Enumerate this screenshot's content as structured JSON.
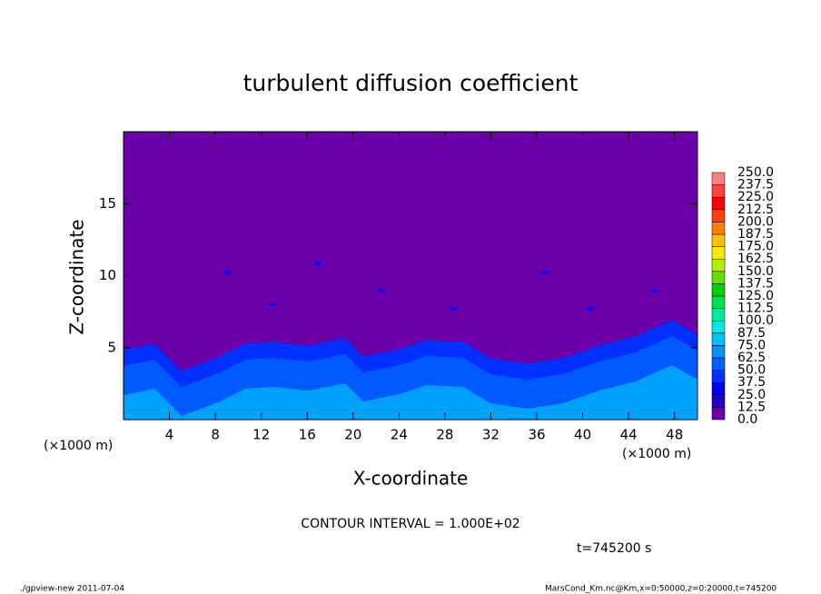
{
  "chart_data": {
    "type": "contour",
    "title": "turbulent diffusion coefficient",
    "x_label": "X-coordinate",
    "y_label": "Z-coordinate",
    "x_unit": "(×1000 m)",
    "y_unit": "(×1000 m)",
    "xlim": [
      0,
      50
    ],
    "ylim": [
      0,
      20
    ],
    "xticks": [
      4,
      8,
      12,
      16,
      20,
      24,
      28,
      32,
      36,
      40,
      44,
      48
    ],
    "yticks": [
      5,
      10,
      15
    ],
    "levels": [
      {
        "value": 0,
        "label": "0.0"
      },
      12.5,
      {
        "value": 25,
        "label": "25.0"
      },
      37.5,
      {
        "value": 50,
        "label": "50.0"
      },
      62.5,
      {
        "value": 75,
        "label": "75.0"
      },
      87.5,
      {
        "value": 100,
        "label": "100.0"
      },
      112.5,
      {
        "value": 125,
        "label": "125.0"
      },
      137.5,
      {
        "value": 150,
        "label": "150.0"
      },
      162.5,
      {
        "value": 175,
        "label": "175.0"
      },
      187.5,
      {
        "value": 200,
        "label": "200.0"
      },
      212.5,
      {
        "value": 225,
        "label": "225.0"
      },
      237.5,
      {
        "value": 250,
        "label": "250.0"
      }
    ],
    "colors": [
      "#6c00a8",
      "#2400d0",
      "#0000ff",
      "#0030ff",
      "#0060ff",
      "#0090ff",
      "#00c0ff",
      "#00e8e8",
      "#00e8a0",
      "#00e050",
      "#00d000",
      "#60e000",
      "#b0f000",
      "#f0f000",
      "#ffc000",
      "#ff8000",
      "#ff4000",
      "#ff0000",
      "#ff4040",
      "#ff8080"
    ],
    "contour_interval": "CONTOUR INTERVAL = 1.000E+02",
    "time": "t=745200 s",
    "footer_left": "./gpview-new  2011-07-04",
    "footer_right": "MarsCond_Km.nc@Km,x=0:50000,z=0:20000,t=745200"
  }
}
